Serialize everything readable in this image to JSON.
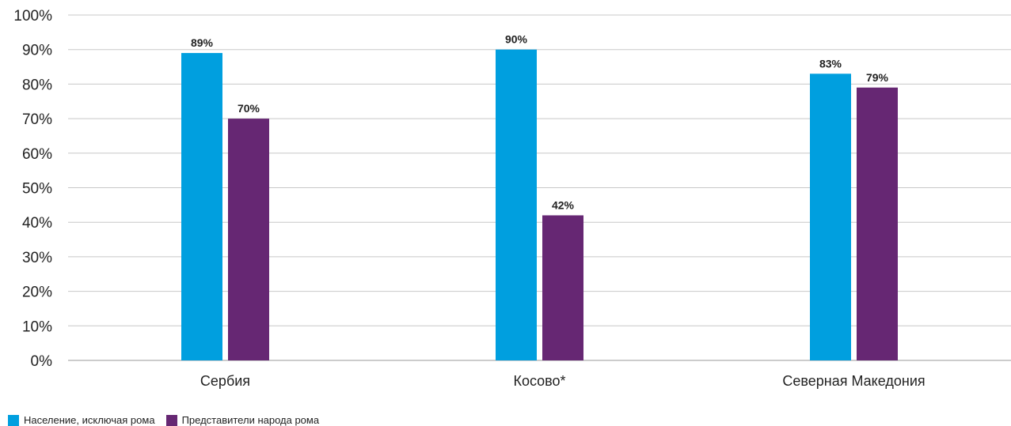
{
  "chart_data": {
    "type": "bar",
    "categories": [
      "Сербия",
      "Косово*",
      "Северная Македония"
    ],
    "series": [
      {
        "name": "Население, исключая рома",
        "values": [
          89,
          90,
          83
        ],
        "labels": [
          "89%",
          "90%",
          "83%"
        ],
        "color": "#009FDF"
      },
      {
        "name": "Представители народа рома",
        "values": [
          70,
          42,
          79
        ],
        "labels": [
          "70%",
          "42%",
          "79%"
        ],
        "color": "#662773"
      }
    ],
    "ylim": [
      0,
      100
    ],
    "yticks": [
      0,
      10,
      20,
      30,
      40,
      50,
      60,
      70,
      80,
      90,
      100
    ],
    "ytick_labels": [
      "0%",
      "10%",
      "20%",
      "30%",
      "40%",
      "50%",
      "60%",
      "70%",
      "80%",
      "90%",
      "100%"
    ],
    "grid": true,
    "legend_position": "bottom-left"
  }
}
